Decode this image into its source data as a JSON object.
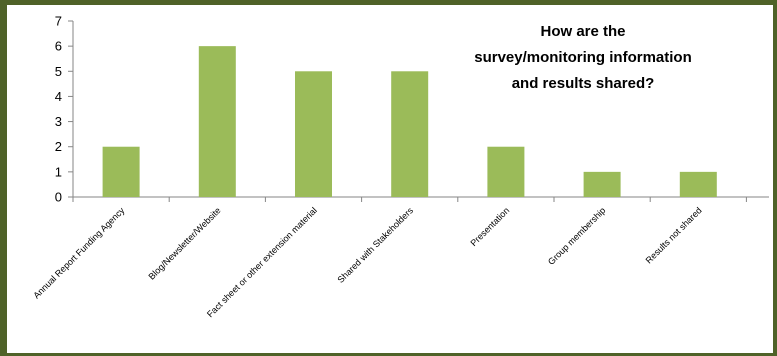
{
  "chart_data": {
    "type": "bar",
    "title_lines": [
      "How are the",
      "survey/monitoring information",
      "and results shared?"
    ],
    "categories": [
      "Annual Report Funding Agency",
      "Blog/Newsletter/Website",
      "Fact sheet or other extension material",
      "Shared with Stakeholders",
      "Presentation",
      "Group membership",
      "Results not shared"
    ],
    "values": [
      2,
      6,
      5,
      5,
      2,
      1,
      1
    ],
    "ylim": [
      0,
      7
    ],
    "yticks": [
      "0",
      "1",
      "2",
      "3",
      "4",
      "5",
      "6",
      "7"
    ],
    "xlabel": "",
    "ylabel": "",
    "bar_color": "#9bbb59",
    "frame_color": "#4f6228",
    "grid": false,
    "legend": "none"
  }
}
